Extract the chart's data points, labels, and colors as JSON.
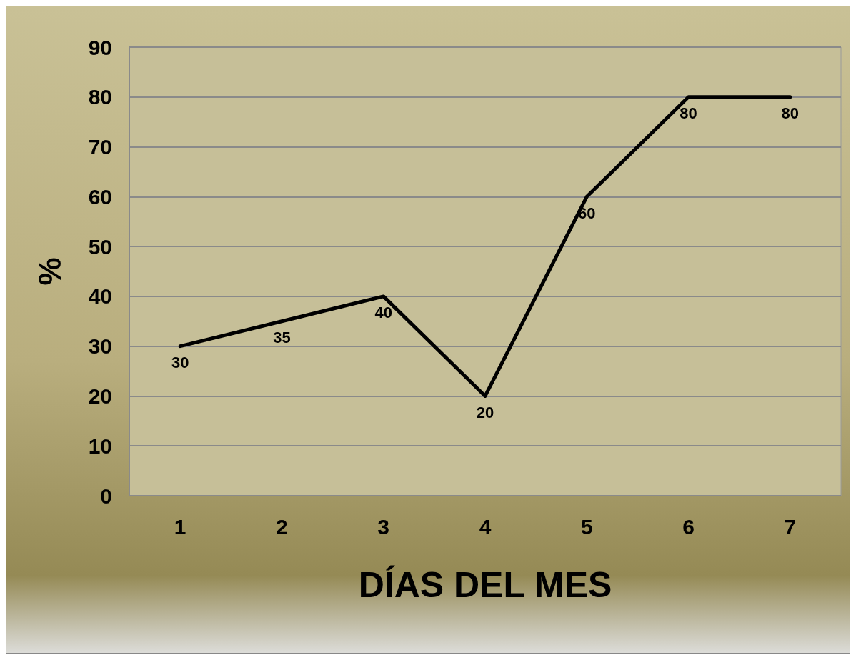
{
  "chart_data": {
    "type": "line",
    "xlabel": "DÍAS DEL MES",
    "ylabel": "%",
    "categories": [
      "1",
      "2",
      "3",
      "4",
      "5",
      "6",
      "7"
    ],
    "values": [
      30,
      35,
      40,
      20,
      60,
      80,
      80
    ],
    "color": "#000000",
    "ylim": [
      0,
      90
    ],
    "yticks": [
      0,
      10,
      20,
      30,
      40,
      50,
      60,
      70,
      80,
      90
    ],
    "grid": "y",
    "data_labels": true,
    "marker": "none",
    "line_style": "solid"
  }
}
